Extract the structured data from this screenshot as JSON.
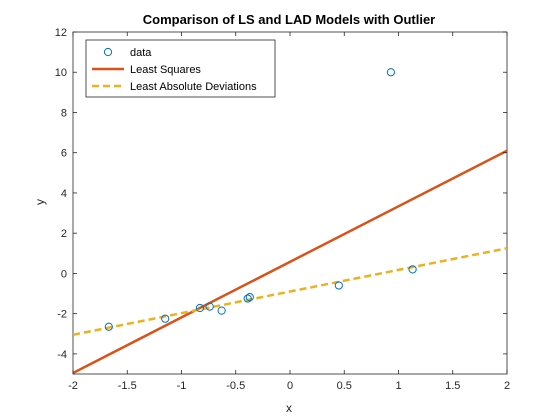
{
  "chart_data": {
    "type": "scatter",
    "title": "Comparison of LS and LAD Models with Outlier",
    "xlabel": "x",
    "ylabel": "y",
    "xlim": [
      -2,
      2
    ],
    "ylim": [
      -5,
      12
    ],
    "xticks": [
      -2,
      -1.5,
      -1,
      -0.5,
      0,
      0.5,
      1,
      1.5,
      2
    ],
    "xtick_labels": [
      "-2",
      "-1.5",
      "-1",
      "-0.5",
      "0",
      "0.5",
      "1",
      "1.5",
      "2"
    ],
    "yticks": [
      -4,
      -2,
      0,
      2,
      4,
      6,
      8,
      10,
      12
    ],
    "ytick_labels": [
      "-4",
      "-2",
      "0",
      "2",
      "4",
      "6",
      "8",
      "10",
      "12"
    ],
    "grid": false,
    "legend_position": "top-left",
    "series": [
      {
        "name": "data",
        "kind": "scatter",
        "marker": "circle",
        "color": "#0072BD",
        "points": [
          {
            "x": -1.67,
            "y": -2.65
          },
          {
            "x": -1.15,
            "y": -2.25
          },
          {
            "x": -0.83,
            "y": -1.72
          },
          {
            "x": -0.74,
            "y": -1.65
          },
          {
            "x": -0.63,
            "y": -1.85
          },
          {
            "x": -0.39,
            "y": -1.25
          },
          {
            "x": -0.37,
            "y": -1.18
          },
          {
            "x": 0.45,
            "y": -0.6
          },
          {
            "x": 0.93,
            "y": 10.0
          },
          {
            "x": 1.13,
            "y": 0.2
          }
        ]
      },
      {
        "name": "Least Squares",
        "kind": "line",
        "style": "solid",
        "color": "#D95319",
        "x": [
          -2,
          2
        ],
        "y": [
          -4.95,
          6.1
        ]
      },
      {
        "name": "Least Absolute Deviations",
        "kind": "line",
        "style": "dashed",
        "color": "#EDB120",
        "x": [
          -2,
          2
        ],
        "y": [
          -3.05,
          1.25
        ]
      }
    ]
  }
}
